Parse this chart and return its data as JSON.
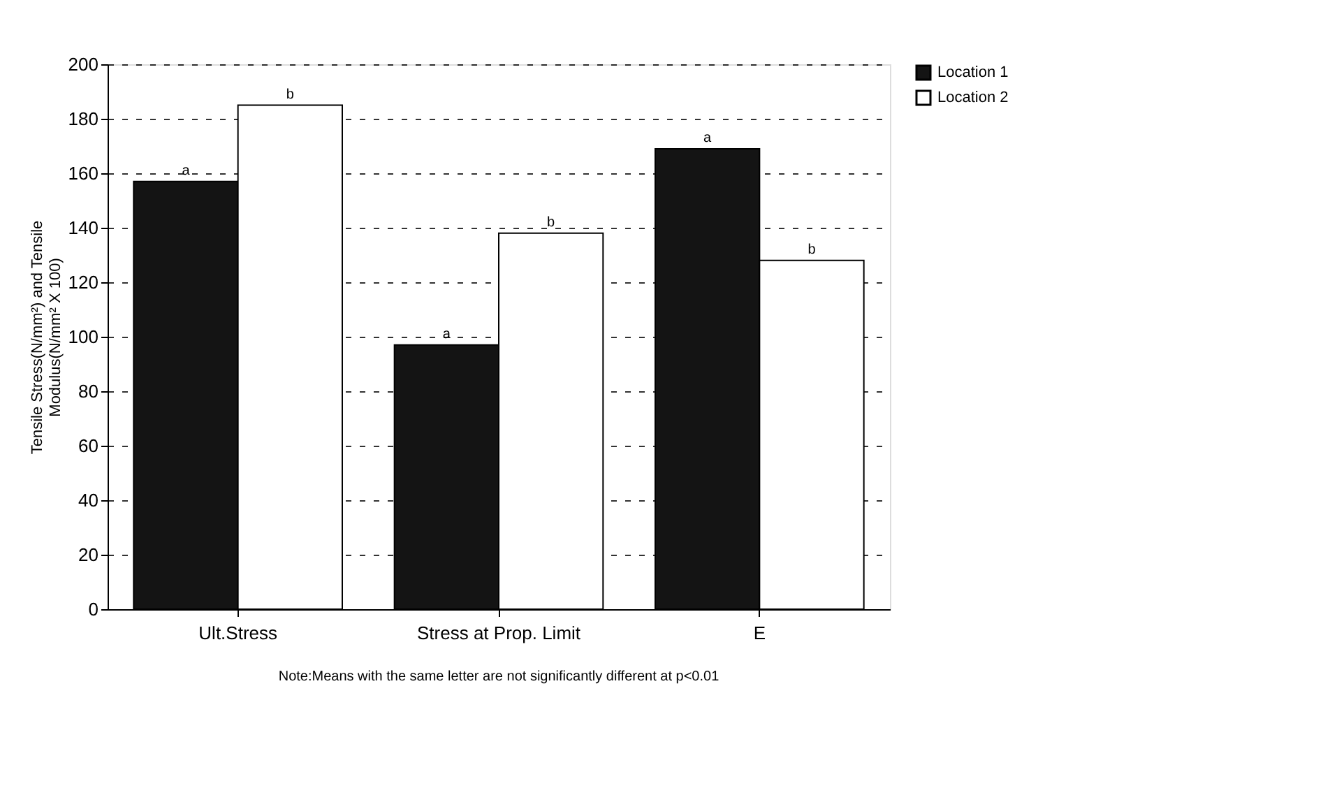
{
  "chart_data": {
    "type": "bar",
    "ylabel": "Tensile Stress(N/mm²) and Tensile Modulus(N/mm² X 100)",
    "categories": [
      "Ult.Stress",
      "Stress at Prop. Limit",
      "E"
    ],
    "series": [
      {
        "name": "Location 1",
        "color": "#141414",
        "values": [
          157,
          97,
          169
        ],
        "value_labels": [
          "a",
          "a",
          "a"
        ]
      },
      {
        "name": "Location 2",
        "color": "#ffffff",
        "values": [
          185,
          138,
          128
        ],
        "value_labels": [
          "b",
          "b",
          "b"
        ]
      }
    ],
    "ylim": [
      0,
      200
    ],
    "yticks": [
      0,
      20,
      40,
      60,
      80,
      100,
      120,
      140,
      160,
      180,
      200
    ],
    "grid": "y",
    "legend": "right",
    "annotations": [
      "Note:Means with the same letter are not significantly different at p<0.01"
    ]
  }
}
